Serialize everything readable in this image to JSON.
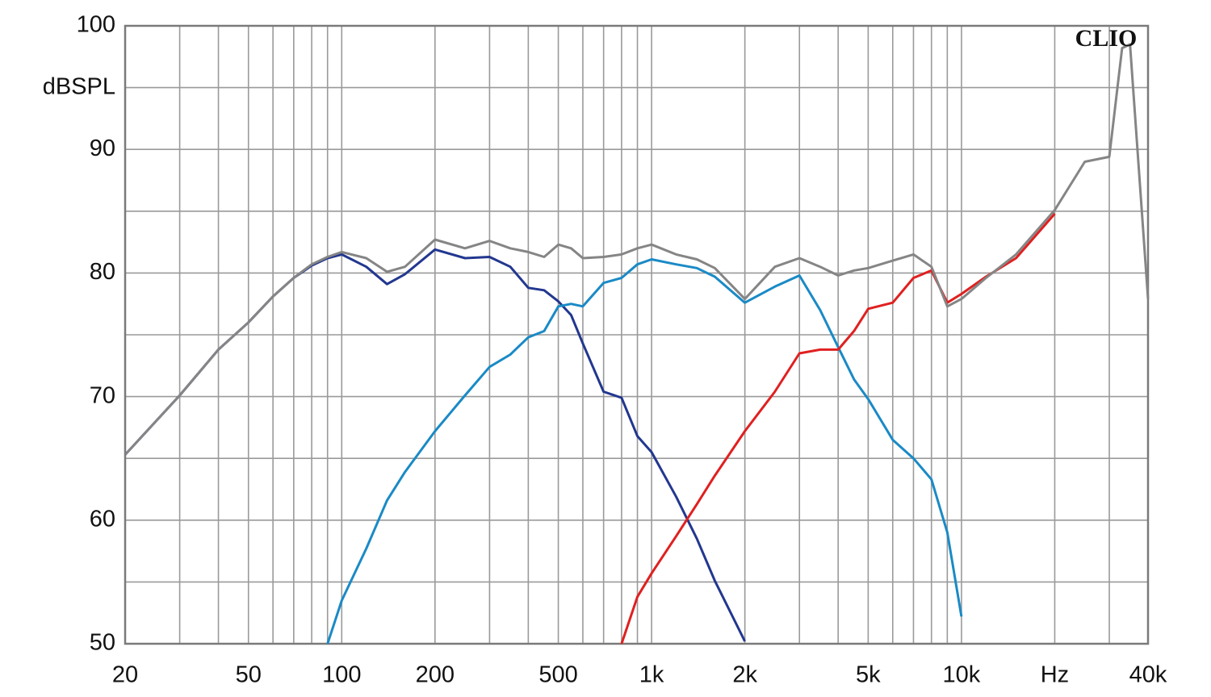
{
  "chart_data": {
    "type": "line",
    "annotation": "CLIO",
    "xscale": "log",
    "grid": true,
    "xlim": [
      20,
      40000
    ],
    "ylim": [
      50,
      100
    ],
    "xticks": [
      20,
      50,
      100,
      200,
      500,
      {
        "value": 1000,
        "label": "1k"
      },
      {
        "value": 2000,
        "label": "2k"
      },
      {
        "value": 5000,
        "label": "5k"
      },
      {
        "value": 10000,
        "label": "10k"
      },
      {
        "value": 20000,
        "label": "Hz"
      },
      {
        "value": 40000,
        "label": "40k"
      }
    ],
    "yticks": [
      50,
      60,
      70,
      80,
      90,
      {
        "value": 95,
        "label": "dBSPL"
      },
      100
    ],
    "xminor": [
      30,
      40,
      60,
      70,
      80,
      90,
      300,
      400,
      600,
      700,
      800,
      900,
      3000,
      4000,
      6000,
      7000,
      8000,
      9000,
      30000
    ],
    "yminor": [
      55,
      65,
      75,
      85
    ],
    "x": [
      20,
      30,
      40,
      50,
      60,
      70,
      80,
      90,
      100,
      120,
      140,
      160,
      200,
      250,
      300,
      350,
      400,
      450,
      500,
      550,
      600,
      700,
      800,
      900,
      1000,
      1200,
      1400,
      1600,
      2000,
      2500,
      3000,
      3500,
      4000,
      4500,
      5000,
      6000,
      7000,
      8000,
      9000,
      10000,
      12000,
      15000,
      20000,
      25000,
      30000,
      33000,
      35000,
      40000
    ],
    "series": [
      {
        "color": "#22378f",
        "values": [
          65.3,
          70.1,
          73.8,
          76.0,
          78.1,
          79.6,
          80.6,
          81.2,
          81.5,
          80.5,
          79.1,
          79.9,
          81.9,
          81.2,
          81.3,
          80.5,
          78.8,
          78.6,
          77.7,
          76.6,
          74.3,
          70.4,
          69.9,
          66.8,
          65.5,
          61.9,
          58.5,
          55.1,
          50.2,
          null,
          null,
          null,
          null,
          null,
          null,
          null,
          null,
          null,
          null,
          null,
          null,
          null,
          null,
          null,
          null,
          null,
          null,
          null
        ]
      },
      {
        "color": "#1a8ac6",
        "values": [
          null,
          null,
          null,
          null,
          null,
          null,
          null,
          50.0,
          53.5,
          57.7,
          61.6,
          63.9,
          67.2,
          70.1,
          72.4,
          73.4,
          74.8,
          75.3,
          77.3,
          77.5,
          77.3,
          79.2,
          79.6,
          80.7,
          81.1,
          80.7,
          80.4,
          79.7,
          77.6,
          78.9,
          79.8,
          77.0,
          74.0,
          71.4,
          69.8,
          66.5,
          65.0,
          63.3,
          59.0,
          52.2,
          null,
          null,
          null,
          null,
          null,
          null,
          null,
          null
        ]
      },
      {
        "color": "#e02020",
        "values": [
          null,
          null,
          null,
          null,
          null,
          null,
          null,
          null,
          null,
          null,
          null,
          null,
          null,
          null,
          null,
          null,
          null,
          null,
          null,
          null,
          null,
          null,
          50.0,
          53.8,
          55.7,
          58.7,
          61.3,
          63.6,
          67.2,
          70.4,
          73.5,
          73.8,
          73.8,
          75.3,
          77.1,
          77.6,
          79.6,
          80.2,
          77.6,
          78.3,
          79.7,
          81.2,
          84.8,
          null,
          null,
          null,
          null,
          null
        ]
      },
      {
        "color": "#858585",
        "values": [
          65.3,
          70.1,
          73.8,
          76.0,
          78.1,
          79.6,
          80.7,
          81.3,
          81.7,
          81.2,
          80.1,
          80.5,
          82.7,
          82.0,
          82.6,
          82.0,
          81.7,
          81.3,
          82.3,
          82.0,
          81.2,
          81.3,
          81.5,
          82.0,
          82.3,
          81.5,
          81.1,
          80.4,
          77.9,
          80.5,
          81.2,
          80.5,
          79.8,
          80.2,
          80.4,
          81.0,
          81.5,
          80.5,
          77.3,
          77.9,
          79.6,
          81.5,
          85.1,
          89.0,
          89.4,
          98.2,
          98.5,
          77.9
        ]
      }
    ]
  }
}
